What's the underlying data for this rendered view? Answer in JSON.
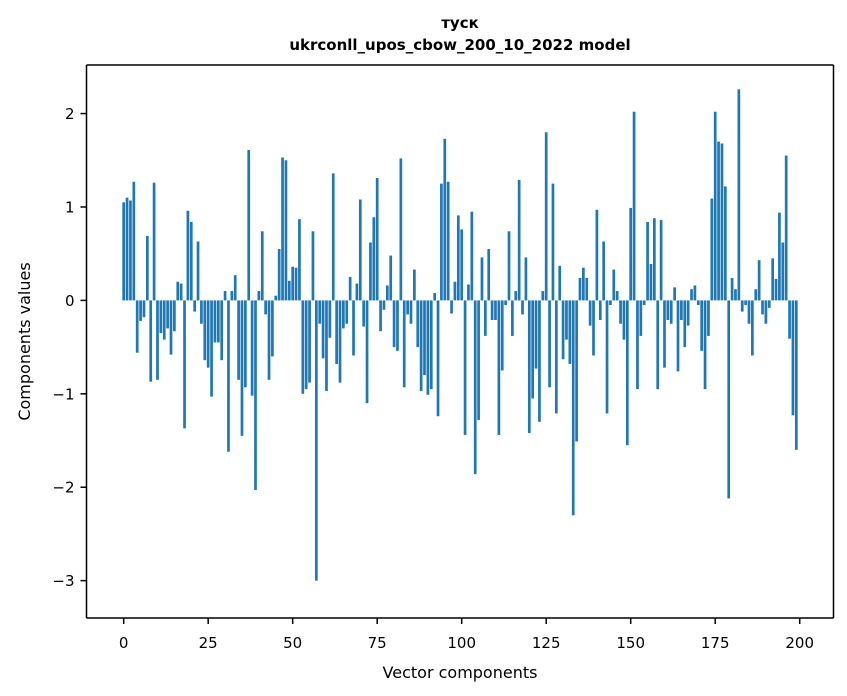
{
  "figure": {
    "title_line1": "туск",
    "title_line2": "ukrconll_upos_cbow_200_10_2022 model",
    "xlabel": "Vector components",
    "ylabel": "Components values"
  },
  "chart_data": {
    "type": "bar",
    "title": "туск",
    "subtitle": "ukrconll_upos_cbow_200_10_2022 model",
    "xlabel": "Vector components",
    "ylabel": "Components values",
    "n_bars": 200,
    "x_index_start": 0,
    "x_index_end": 199,
    "x_ticks": [
      0,
      25,
      50,
      75,
      100,
      125,
      150,
      175,
      200
    ],
    "y_ticks": [
      2,
      1,
      0,
      -1,
      -2,
      -3
    ],
    "xlim": [
      -11,
      210
    ],
    "ylim": [
      -3.4,
      2.52
    ],
    "grid": false,
    "legend": "none",
    "bar_color": "#1f77b4",
    "axis_color": "#000000",
    "background_color": "#ffffff",
    "values": [
      1.05,
      1.1,
      1.07,
      1.27,
      -0.56,
      -0.22,
      -0.18,
      0.69,
      -0.87,
      1.26,
      -0.85,
      -0.35,
      -0.42,
      -0.3,
      -0.58,
      -0.33,
      0.2,
      0.18,
      -1.37,
      0.96,
      0.84,
      -0.12,
      0.63,
      -0.25,
      -0.64,
      -0.72,
      -1.03,
      -0.45,
      -0.45,
      -0.64,
      0.1,
      -1.62,
      0.1,
      0.27,
      -0.85,
      -1.45,
      -0.93,
      1.61,
      -1.02,
      -2.03,
      0.1,
      0.74,
      -0.15,
      -0.85,
      -0.6,
      0.05,
      0.55,
      1.53,
      1.5,
      0.21,
      0.36,
      0.35,
      0.87,
      -1.0,
      -0.95,
      -0.88,
      0.74,
      -3.0,
      -0.25,
      -0.62,
      -0.97,
      -0.4,
      1.36,
      -0.68,
      -0.88,
      -0.3,
      -0.25,
      0.25,
      -0.59,
      0.18,
      1.08,
      -0.28,
      -1.1,
      0.62,
      0.89,
      1.31,
      -0.33,
      -0.1,
      0.16,
      0.48,
      -0.5,
      -0.54,
      1.52,
      -0.93,
      -0.15,
      -0.25,
      0.33,
      -0.5,
      -0.97,
      -0.8,
      -1.01,
      -0.95,
      0.08,
      -1.24,
      1.25,
      1.73,
      1.27,
      -0.14,
      0.2,
      0.91,
      0.76,
      -1.44,
      0.17,
      0.95,
      -1.86,
      -1.28,
      0.46,
      -0.38,
      0.55,
      -0.21,
      -0.21,
      -1.44,
      -0.75,
      -0.05,
      0.74,
      -0.38,
      0.1,
      1.29,
      -0.15,
      0.46,
      -1.42,
      -1.05,
      -0.73,
      -1.3,
      0.1,
      1.8,
      -0.93,
      1.25,
      -1.21,
      0.37,
      -0.63,
      -0.42,
      -0.68,
      -2.3,
      -1.51,
      0.24,
      0.35,
      0.24,
      -0.27,
      -0.59,
      0.97,
      -0.21,
      0.63,
      -1.21,
      -0.05,
      0.33,
      0.1,
      -0.25,
      -0.42,
      -1.55,
      0.99,
      2.02,
      -0.95,
      -0.38,
      -0.05,
      0.84,
      0.39,
      0.88,
      -0.95,
      0.86,
      -0.72,
      -0.21,
      -0.25,
      0.14,
      -0.76,
      -0.21,
      -0.5,
      -0.27,
      0.12,
      0.16,
      -0.05,
      -0.54,
      -0.95,
      -0.38,
      1.09,
      2.02,
      1.7,
      1.68,
      1.22,
      -2.12,
      0.24,
      0.12,
      2.26,
      -0.12,
      -0.05,
      -0.25,
      -0.59,
      0.12,
      0.43,
      -0.15,
      -0.25,
      -0.08,
      0.45,
      0.23,
      0.94,
      0.62,
      1.55,
      -0.41,
      -1.23,
      -1.6
    ]
  }
}
